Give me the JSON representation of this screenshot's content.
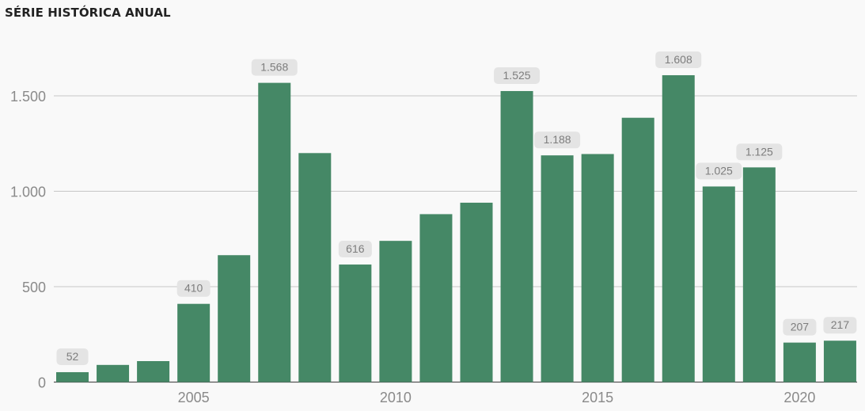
{
  "chart_data": {
    "type": "bar",
    "title": "SÉRIE HISTÓRICA ANUAL",
    "xlabel": "",
    "ylabel": "",
    "x": [
      2002,
      2003,
      2004,
      2005,
      2006,
      2007,
      2008,
      2009,
      2010,
      2011,
      2012,
      2013,
      2014,
      2015,
      2016,
      2017,
      2018,
      2019,
      2020,
      2021
    ],
    "values": [
      52,
      90,
      110,
      410,
      665,
      1568,
      1200,
      616,
      740,
      880,
      940,
      1525,
      1188,
      1195,
      1385,
      1608,
      1025,
      1125,
      207,
      217
    ],
    "data_labels": [
      "52",
      null,
      null,
      "410",
      null,
      "1.568",
      null,
      "616",
      null,
      null,
      null,
      "1.525",
      "1.188",
      null,
      null,
      "1.608",
      "1.025",
      "1.125",
      "207",
      "217"
    ],
    "ylim": [
      0,
      1800
    ],
    "y_ticks": [
      0,
      500,
      1000,
      1500
    ],
    "y_tick_labels": [
      "0",
      "500",
      "1.000",
      "1.500"
    ],
    "x_ticks": [
      2005,
      2010,
      2015,
      2020
    ],
    "x_tick_labels": [
      "2005",
      "2010",
      "2015",
      "2020"
    ],
    "grid": true,
    "bar_color": "#458866",
    "label_bg_color": "#e4e4e4",
    "label_text_color": "#7d7d7d",
    "grid_color": "#c6c6c6",
    "axis_text_color": "#8a8a8a"
  }
}
